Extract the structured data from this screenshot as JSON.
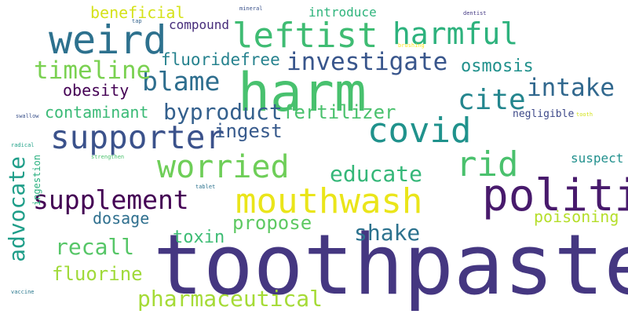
{
  "words": [
    {
      "id": "toothpaste",
      "text": "toothpaste",
      "color": "#453781"
    },
    {
      "id": "harm",
      "text": "harm",
      "color": "#48c16e"
    },
    {
      "id": "politic",
      "text": "politic",
      "color": "#481a6c"
    },
    {
      "id": "weird",
      "text": "weird",
      "color": "#2d718e"
    },
    {
      "id": "mouthwash",
      "text": "mouthwash",
      "color": "#eae51a"
    },
    {
      "id": "leftist",
      "text": "leftist",
      "color": "#3fbc73"
    },
    {
      "id": "covid",
      "text": "covid",
      "color": "#20928c"
    },
    {
      "id": "rid",
      "text": "rid",
      "color": "#4ac16d"
    },
    {
      "id": "supporter",
      "text": "supporter",
      "color": "#3b528b"
    },
    {
      "id": "worried",
      "text": "worried",
      "color": "#6ece58"
    },
    {
      "id": "harmful",
      "text": "harmful",
      "color": "#2db27d"
    },
    {
      "id": "investigate",
      "text": "investigate",
      "color": "#39568c"
    },
    {
      "id": "supplement",
      "text": "supplement",
      "color": "#440154"
    },
    {
      "id": "cite",
      "text": "cite",
      "color": "#24868e"
    },
    {
      "id": "blame",
      "text": "blame",
      "color": "#2e6e8e"
    },
    {
      "id": "advocate",
      "text": "advocate",
      "color": "#1f9e89"
    },
    {
      "id": "timeline",
      "text": "timeline",
      "color": "#7ad151"
    },
    {
      "id": "intake",
      "text": "intake",
      "color": "#31688e"
    },
    {
      "id": "educate",
      "text": "educate",
      "color": "#35b779"
    },
    {
      "id": "shake",
      "text": "shake",
      "color": "#2c728e"
    },
    {
      "id": "recall",
      "text": "recall",
      "color": "#56c667"
    },
    {
      "id": "propose",
      "text": "propose",
      "color": "#5ec962"
    },
    {
      "id": "pharmaceutical",
      "text": "pharmaceutical",
      "color": "#a5db36"
    },
    {
      "id": "byproduct",
      "text": "byproduct",
      "color": "#34608d"
    },
    {
      "id": "fertilizer",
      "text": "fertilizer",
      "color": "#4ac16d"
    },
    {
      "id": "fluoridefree",
      "text": "fluoridefree",
      "color": "#26828e"
    },
    {
      "id": "osmosis",
      "text": "osmosis",
      "color": "#21918c"
    },
    {
      "id": "ingest",
      "text": "ingest",
      "color": "#375a8c"
    },
    {
      "id": "fluorine",
      "text": "fluorine",
      "color": "#a0da39"
    },
    {
      "id": "toxin",
      "text": "toxin",
      "color": "#3dbc74"
    },
    {
      "id": "contaminant",
      "text": "contaminant",
      "color": "#3aba76"
    },
    {
      "id": "beneficial",
      "text": "beneficial",
      "color": "#d5e21a"
    },
    {
      "id": "poisoning",
      "text": "poisoning",
      "color": "#b5de2b"
    },
    {
      "id": "dosage",
      "text": "dosage",
      "color": "#2e6f8e"
    },
    {
      "id": "obesity",
      "text": "obesity",
      "color": "#440154"
    },
    {
      "id": "compound",
      "text": "compound",
      "color": "#472d7b"
    },
    {
      "id": "introduce",
      "text": "introduce",
      "color": "#2fb47c"
    },
    {
      "id": "suspect",
      "text": "suspect",
      "color": "#21908d"
    },
    {
      "id": "negligible",
      "text": "negligible",
      "color": "#3e4989"
    },
    {
      "id": "ingestion",
      "text": "ingestion",
      "color": "#2ab07f"
    },
    {
      "id": "mineral",
      "text": "mineral",
      "color": "#3b528b"
    },
    {
      "id": "dentist",
      "text": "dentist",
      "color": "#443983"
    },
    {
      "id": "tap",
      "text": "tap",
      "color": "#33638d"
    },
    {
      "id": "brushing",
      "text": "brushing",
      "color": "#fde725"
    },
    {
      "id": "swallow",
      "text": "swallow",
      "color": "#3b528b"
    },
    {
      "id": "tooth",
      "text": "tooth",
      "color": "#d2e21b"
    },
    {
      "id": "radical",
      "text": "radical",
      "color": "#1fa187"
    },
    {
      "id": "strengthen",
      "text": "strengthen",
      "color": "#4ac16d"
    },
    {
      "id": "tablet",
      "text": "tablet",
      "color": "#2c728e"
    },
    {
      "id": "vaccine",
      "text": "vaccine",
      "color": "#2a788e"
    }
  ]
}
